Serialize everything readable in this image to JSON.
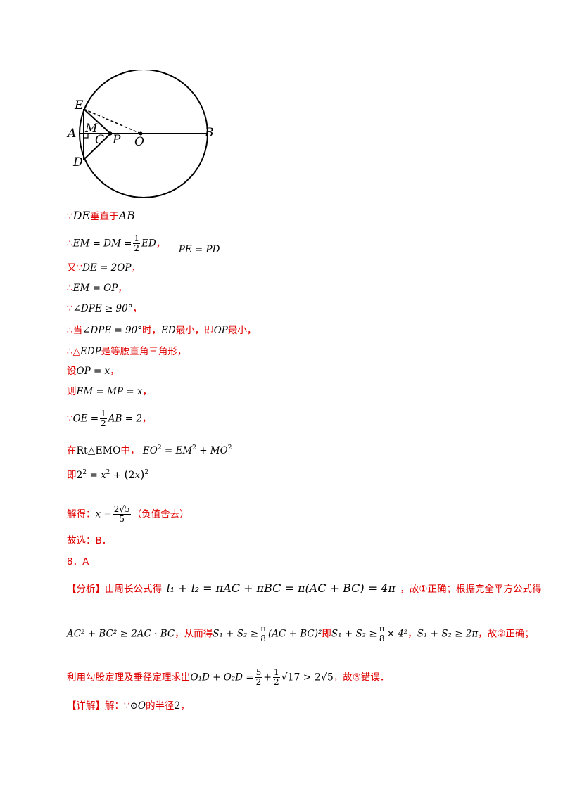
{
  "figure": {
    "labels": {
      "E": "E",
      "A": "A",
      "M": "M",
      "C": "C",
      "P": "P",
      "O": "O",
      "B": "B",
      "D": "D"
    }
  },
  "lines": {
    "l1_pre": "∵",
    "l1_expr": "DE",
    "l1_post": "垂直于",
    "l1_expr2": "AB",
    "l2_pre": "∴",
    "l2_expr_a": "EM = DM =",
    "l2_frac_num": "1",
    "l2_frac_den": "2",
    "l2_expr_b": "ED",
    "l2_comma": "，",
    "l2_expr_c": "PE = PD",
    "l3_pre": "又∵",
    "l3_expr": "DE = 2OP",
    "l3_post": "，",
    "l4_pre": "∴",
    "l4_expr": "EM = OP",
    "l4_post": "，",
    "l5_pre": "∵",
    "l5_expr": "∠DPE ≥ 90°",
    "l5_post": "，",
    "l6_pre": "∴当",
    "l6_expr": "∠DPE = 90°",
    "l6_mid1": "时，",
    "l6_expr2": "ED",
    "l6_mid2": "最小，即",
    "l6_expr3": "OP",
    "l6_post": "最小，",
    "l7_pre": "∴△",
    "l7_expr": "EDP",
    "l7_post": "是等腰直角三角形，",
    "l8_pre": "设",
    "l8_expr": "OP = x",
    "l8_post": "，",
    "l9_pre": "则",
    "l9_expr": "EM = MP = x",
    "l9_post": "，",
    "l10_pre": "∵",
    "l10_expr_a": "OE =",
    "l10_frac_num": "1",
    "l10_frac_den": "2",
    "l10_expr_b": "AB = 2",
    "l10_post": "，",
    "l11_pre": "在",
    "l11_expr": "Rt△EMO",
    "l11_mid": "中，",
    "l11_expr2a": "EO",
    "l11_expr2b": " = EM",
    "l11_expr2c": " + MO",
    "l12_pre": "即",
    "l12_expr": "2",
    "l13_pre": "解得：",
    "l13_x": "x =",
    "l13_num": "2√5",
    "l13_den": "5",
    "l13_post": "（负值舍去）",
    "l14": "故选：B．",
    "l15": "8．A",
    "l16_pre": "【分析】由周长公式得",
    "l16_expr": "l₁ + l₂ = πAC + πBC = π(AC + BC) = 4π",
    "l16_post": "，故①正确；根据完全平方公式得",
    "l17_expr1": "AC² + BC² ≥ 2AC · BC",
    "l17_t1": "，从而得",
    "l17_expr2a": "S₁ + S₂ ≥",
    "l17_pi": "π",
    "l17_8": "8",
    "l17_expr2b": "(AC + BC)²",
    "l17_t2": "即",
    "l17_expr3a": "S₁ + S₂ ≥",
    "l17_expr3b": "× 4²",
    "l17_t3": "，",
    "l17_expr4": "S₁ + S₂ ≥ 2π",
    "l17_t4": "，故②正确；",
    "l18_pre": "利用勾股定理及垂径定理求出",
    "l18_expr_a": "O₁D + O₂D =",
    "l18_n1": "5",
    "l18_d1": "2",
    "l18_plus": "+",
    "l18_n2": "1",
    "l18_d2": "2",
    "l18_expr_b": "√17 > 2√5",
    "l18_post": "，故③错误．",
    "l19_pre": "【详解】解：∵",
    "l19_expr": "⊙O",
    "l19_mid": "的半径",
    "l19_num": "2",
    "l19_post": "，"
  }
}
